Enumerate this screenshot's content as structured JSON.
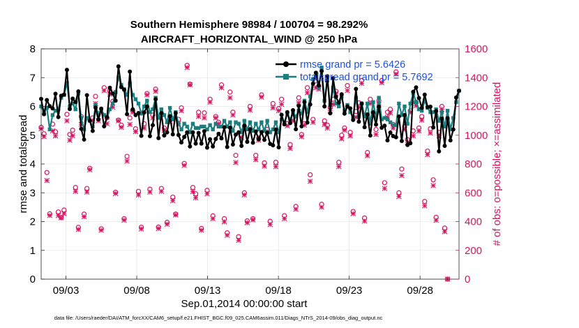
{
  "chart_data": {
    "type": "line",
    "title": "Southern Hemisphere 98984 / 100704 = 98.292%",
    "subtitle": "AIRCRAFT_HORIZONTAL_WIND @ 250 hPa",
    "xlabel": "Sep.01,2014 00:00:00 start",
    "ylabel_left": "rmse and totalspread",
    "ylabel_right": "# of obs: o=possible; ×=assimilated",
    "footnote": "data file: /Users/raeder/DAI/ATM_forcXX/CAM6_setup/f.e21.FHIST_BGC.f09_025.CAM6assim.011/Diags_NTrS_2014-09/obs_diag_output.nc",
    "x_ticks": [
      "09/03",
      "09/08",
      "09/13",
      "09/18",
      "09/23",
      "09/28"
    ],
    "x_tick_days": [
      3,
      8,
      13,
      18,
      23,
      28
    ],
    "xlim_days": [
      1.25,
      30.75
    ],
    "ylim_left": [
      0,
      8
    ],
    "yticks_left": [
      "0",
      "1",
      "2",
      "3",
      "4",
      "5",
      "6",
      "7",
      "8"
    ],
    "ylim_right": [
      0,
      1600
    ],
    "yticks_right": [
      "0",
      "200",
      "400",
      "600",
      "800",
      "1000",
      "1200",
      "1400",
      "1600"
    ],
    "colors": {
      "rmse": "#000000",
      "spread": "#1b7f7f",
      "obs": "#d6135f",
      "legend_text": "#1f4fe0"
    },
    "series": [
      {
        "name": "rmse grand pr = 5.6426",
        "axis": "left",
        "values": [
          6.26,
          5.73,
          6.22,
          6.01,
          5.93,
          6.44,
          5.63,
          6.37,
          6.41,
          7.27,
          5.91,
          6.27,
          6.15,
          6.52,
          5.22,
          4.85,
          6.39,
          5.51,
          5.15,
          5.96,
          5.55,
          5.92,
          5.31,
          5.63,
          6.65,
          6.45,
          6.2,
          7.39,
          6.67,
          6.58,
          5.73,
          7.21,
          5.9,
          5.7,
          5.77,
          4.98,
          5.79,
          6.0,
          4.97,
          5.35,
          6.25,
          4.9,
          5.77,
          4.99,
          5.1,
          5.66,
          5.03,
          5.77,
          5.01,
          4.75,
          4.94,
          5.1,
          4.61,
          5.1,
          4.71,
          5.08,
          4.71,
          5.14,
          4.57,
          4.86,
          4.61,
          4.87,
          5.05,
          4.89,
          5.28,
          4.59,
          5.26,
          4.68,
          5.02,
          5.1,
          4.63,
          5.33,
          4.77,
          5.21,
          4.74,
          5.13,
          4.86,
          5.11,
          4.84,
          5.09,
          4.7,
          4.65,
          5.2,
          4.58,
          5.71,
          5.38,
          5.8,
          5.42,
          5.87,
          5.21,
          6.02,
          5.31,
          6.15,
          5.44,
          6.07,
          6.79,
          7.17,
          6.73,
          7.23,
          6.0,
          7.05,
          5.76,
          6.98,
          6.33,
          6.13,
          6.42,
          5.75,
          6.0,
          5.93,
          5.53,
          6.61,
          5.47,
          6.1,
          5.28,
          5.72,
          4.99,
          5.79,
          5.37,
          5.99,
          5.26,
          5.33,
          4.82,
          5.09,
          4.97,
          4.93,
          5.65,
          4.8,
          5.7,
          4.66,
          4.72,
          6.51,
          6.66,
          6.29,
          5.95,
          6.41,
          5.98,
          5.99,
          5.27,
          5.84,
          4.44,
          5.58,
          4.63,
          5.59,
          4.82,
          5.2,
          6.31,
          6.54
        ]
      },
      {
        "name": "totalspread grand pr = 5.7692",
        "axis": "left",
        "values": [
          6.0,
          5.8,
          5.95,
          5.2,
          5.7,
          5.85,
          5.9,
          6.3,
          6.4,
          6.82,
          6.0,
          6.1,
          5.9,
          6.45,
          5.6,
          5.2,
          5.6,
          5.5,
          5.3,
          6.05,
          5.7,
          5.9,
          5.7,
          5.6,
          5.9,
          6.1,
          6.5,
          7.0,
          6.75,
          6.6,
          6.4,
          6.8,
          6.4,
          6.25,
          6.1,
          5.75,
          6.0,
          6.2,
          5.8,
          5.9,
          6.3,
          5.6,
          5.9,
          5.7,
          5.45,
          5.95,
          5.55,
          5.8,
          5.4,
          5.2,
          5.4,
          5.3,
          5.1,
          5.4,
          5.25,
          5.25,
          5.3,
          5.3,
          5.2,
          5.35,
          5.2,
          5.4,
          5.3,
          5.3,
          5.5,
          5.3,
          5.45,
          5.15,
          5.45,
          5.4,
          5.1,
          5.5,
          5.2,
          5.45,
          5.15,
          5.4,
          5.2,
          5.45,
          5.15,
          5.5,
          5.1,
          5.2,
          5.45,
          5.1,
          5.55,
          5.45,
          5.75,
          5.55,
          5.8,
          5.65,
          5.85,
          5.75,
          6.2,
          5.8,
          6.35,
          6.95,
          7.05,
          6.65,
          7.35,
          6.2,
          6.9,
          6.05,
          6.65,
          6.1,
          6.0,
          6.35,
          5.85,
          6.05,
          5.8,
          5.6,
          6.3,
          5.65,
          6.1,
          5.65,
          6.1,
          5.4,
          6.15,
          5.6,
          6.3,
          5.55,
          5.6,
          5.55,
          5.45,
          5.35,
          5.35,
          6.1,
          5.7,
          6.0,
          5.4,
          6.1,
          6.45,
          6.15,
          5.9,
          5.85,
          6.2,
          5.95,
          5.8,
          5.8,
          5.9,
          5.5,
          5.8,
          5.3,
          5.85,
          5.2,
          5.6,
          6.15,
          6.55
        ]
      },
      {
        "name": "obs possible (o)",
        "axis": "right",
        "values": [
          1055,
          1010,
          741,
          454,
          1077,
          1024,
          467,
          428,
          480,
          1145,
          1005,
          1035,
          637,
          360,
          1130,
          452,
          630,
          770,
          1120,
          1270,
          1150,
          350,
          1330,
          1120,
          1310,
          1235,
          604,
          1105,
          1070,
          420,
          853,
          1120,
          1170,
          1045,
          610,
          361,
          1080,
          1290,
          625,
          1140,
          1320,
          362,
          630,
          1050,
          395,
          1125,
          570,
          452,
          1110,
          1190,
          804,
          1485,
          1355,
          637,
          593,
          1160,
          352,
          1155,
          617,
          1250,
          440,
          1130,
          1090,
          1350,
          420,
          322,
          1300,
          1160,
          860,
          295,
          1000,
          600,
          405,
          1200,
          420,
          860,
          980,
          1280,
          808,
          1040,
          402,
          1220,
          812,
          1185,
          1250,
          441,
          1080,
          935,
          1120,
          505,
          1260,
          1005,
          1080,
          1330,
          725,
          1110,
          1350,
          1340,
          520,
          1100,
          1070,
          1195,
          1250,
          1305,
          812,
          1000,
          1050,
          1345,
          1020,
          470,
          1165,
          1225,
          1380,
          425,
          880,
          1250,
          1160,
          1040,
          1240,
          1380,
          670,
          1160,
          1180,
          1075,
          1440,
          600,
          765,
          1060,
          970,
          1170,
          1030,
          1230,
          1050,
          1130,
          540,
          890,
          1045,
          690,
          430,
          1020,
          1200,
          355,
          0
        ]
      },
      {
        "name": "obs assimilated (×)",
        "axis": "right",
        "values": [
          1045,
          990,
          685,
          442,
          1030,
          995,
          442,
          426,
          455,
          1100,
          965,
          996,
          610,
          345,
          1075,
          434,
          605,
          760,
          1100,
          1220,
          1100,
          340,
          1310,
          1080,
          1285,
          1195,
          595,
          1100,
          1055,
          410,
          820,
          1075,
          1160,
          1025,
          585,
          349,
          1050,
          1280,
          605,
          1120,
          1305,
          352,
          610,
          1035,
          382,
          1095,
          545,
          446,
          1080,
          1170,
          790,
          1470,
          1350,
          608,
          565,
          1130,
          340,
          1120,
          593,
          1230,
          420,
          1120,
          1080,
          1330,
          398,
          305,
          1260,
          1140,
          810,
          270,
          985,
          585,
          392,
          1175,
          412,
          830,
          965,
          1265,
          785,
          1025,
          380,
          1190,
          782,
          1170,
          1215,
          420,
          1065,
          908,
          1100,
          486,
          1225,
          990,
          1070,
          1295,
          680,
          1090,
          1330,
          1320,
          500,
          1075,
          1050,
          1170,
          1215,
          1290,
          782,
          975,
          1035,
          1310,
          995,
          455,
          1125,
          1195,
          1360,
          403,
          858,
          1220,
          1140,
          1005,
          1210,
          1365,
          630,
          1125,
          1155,
          1050,
          1425,
          575,
          720,
          1040,
          950,
          1160,
          995,
          1205,
          1030,
          1105,
          510,
          865,
          1015,
          650,
          409,
          995,
          1180,
          330,
          0
        ]
      }
    ]
  }
}
